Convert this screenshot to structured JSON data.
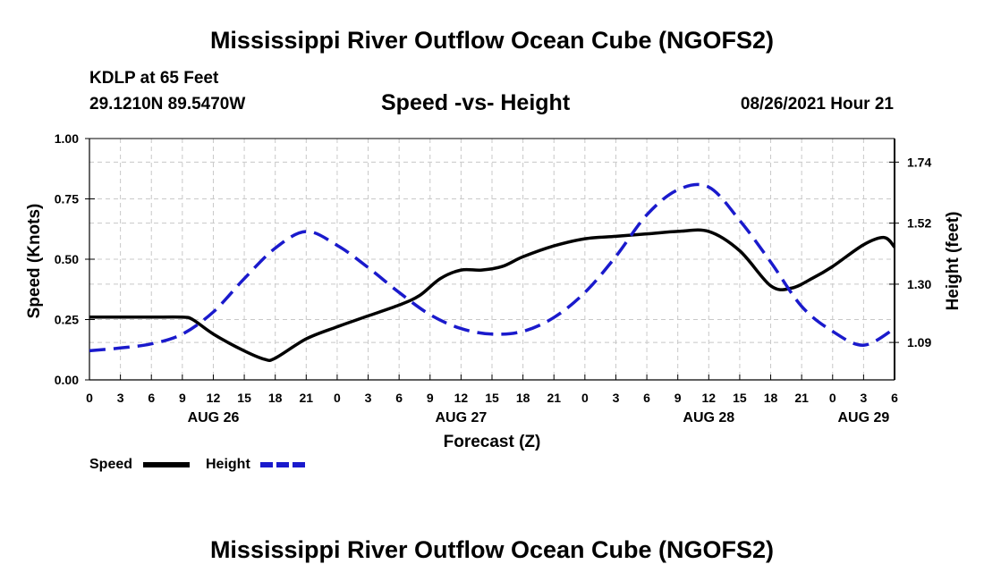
{
  "header": {
    "title": "Mississippi River Outflow Ocean Cube (NGOFS2)",
    "station": "KDLP at 65 Feet",
    "coords": "29.1210N  89.5470W",
    "subtitle": "Speed -vs- Height",
    "datetime": "08/26/2021 Hour 21"
  },
  "footer": {
    "title": "Mississippi River Outflow Ocean Cube (NGOFS2)"
  },
  "colors": {
    "speed": "#000000",
    "height": "#1a1acc",
    "grid": "#c8c8c8"
  },
  "chart_data": {
    "type": "line",
    "title": "Speed -vs- Height",
    "xlabel": "Forecast (Z)",
    "ylabel": "Speed (Knots)",
    "y2label": "Height (feet)",
    "xlim": [
      0,
      78
    ],
    "ylim": [
      0,
      1.0
    ],
    "y2lim": [
      0.955,
      1.825
    ],
    "x_ticks": [
      0,
      3,
      6,
      9,
      12,
      15,
      18,
      21,
      24,
      27,
      30,
      33,
      36,
      39,
      42,
      45,
      48,
      51,
      54,
      57,
      60,
      63,
      66,
      69,
      72,
      75,
      78
    ],
    "x_tick_labels": [
      "0",
      "3",
      "6",
      "9",
      "12",
      "15",
      "18",
      "21",
      "0",
      "3",
      "6",
      "9",
      "12",
      "15",
      "18",
      "21",
      "0",
      "3",
      "6",
      "9",
      "12",
      "15",
      "18",
      "21",
      "0",
      "3",
      "6"
    ],
    "y_ticks": [
      0,
      0.25,
      0.5,
      0.75,
      1.0
    ],
    "y_tick_labels": [
      "0.00",
      "0.25",
      "0.50",
      "0.75",
      "1.00"
    ],
    "y2_ticks": [
      1.09,
      1.3,
      1.52,
      1.74
    ],
    "y2_tick_labels": [
      "1.09",
      "1.30",
      "1.52",
      "1.74"
    ],
    "date_labels": [
      {
        "label": "AUG 26",
        "x": 12
      },
      {
        "label": "AUG 27",
        "x": 36
      },
      {
        "label": "AUG 28",
        "x": 60
      },
      {
        "label": "AUG 29",
        "x": 75
      }
    ],
    "series": [
      {
        "name": "Speed",
        "axis": "left",
        "style": "solid",
        "x": [
          0,
          3,
          6,
          9,
          10,
          12,
          15,
          17,
          18,
          21,
          24,
          27,
          30,
          32,
          34,
          36,
          38,
          40,
          42,
          45,
          48,
          51,
          54,
          57,
          60,
          63,
          66,
          68,
          70,
          72,
          75,
          77,
          78
        ],
        "values": [
          0.26,
          0.26,
          0.26,
          0.26,
          0.25,
          0.19,
          0.12,
          0.085,
          0.09,
          0.17,
          0.22,
          0.265,
          0.31,
          0.35,
          0.42,
          0.455,
          0.455,
          0.47,
          0.51,
          0.555,
          0.585,
          0.595,
          0.605,
          0.615,
          0.615,
          0.535,
          0.39,
          0.38,
          0.42,
          0.47,
          0.56,
          0.59,
          0.55
        ]
      },
      {
        "name": "Height",
        "axis": "right",
        "style": "dashed",
        "x": [
          0,
          3,
          6,
          9,
          12,
          15,
          18,
          21,
          24,
          27,
          30,
          33,
          36,
          39,
          42,
          45,
          48,
          51,
          54,
          57,
          60,
          63,
          66,
          69,
          72,
          75,
          78
        ],
        "values": [
          1.06,
          1.07,
          1.085,
          1.12,
          1.2,
          1.32,
          1.43,
          1.49,
          1.44,
          1.36,
          1.27,
          1.19,
          1.14,
          1.12,
          1.13,
          1.18,
          1.27,
          1.4,
          1.55,
          1.64,
          1.65,
          1.53,
          1.38,
          1.22,
          1.13,
          1.08,
          1.14
        ]
      }
    ],
    "legend": [
      {
        "label": "Speed",
        "style": "solid"
      },
      {
        "label": "Height",
        "style": "dashed"
      }
    ],
    "legend_position": "bottom-left",
    "grid": true
  }
}
